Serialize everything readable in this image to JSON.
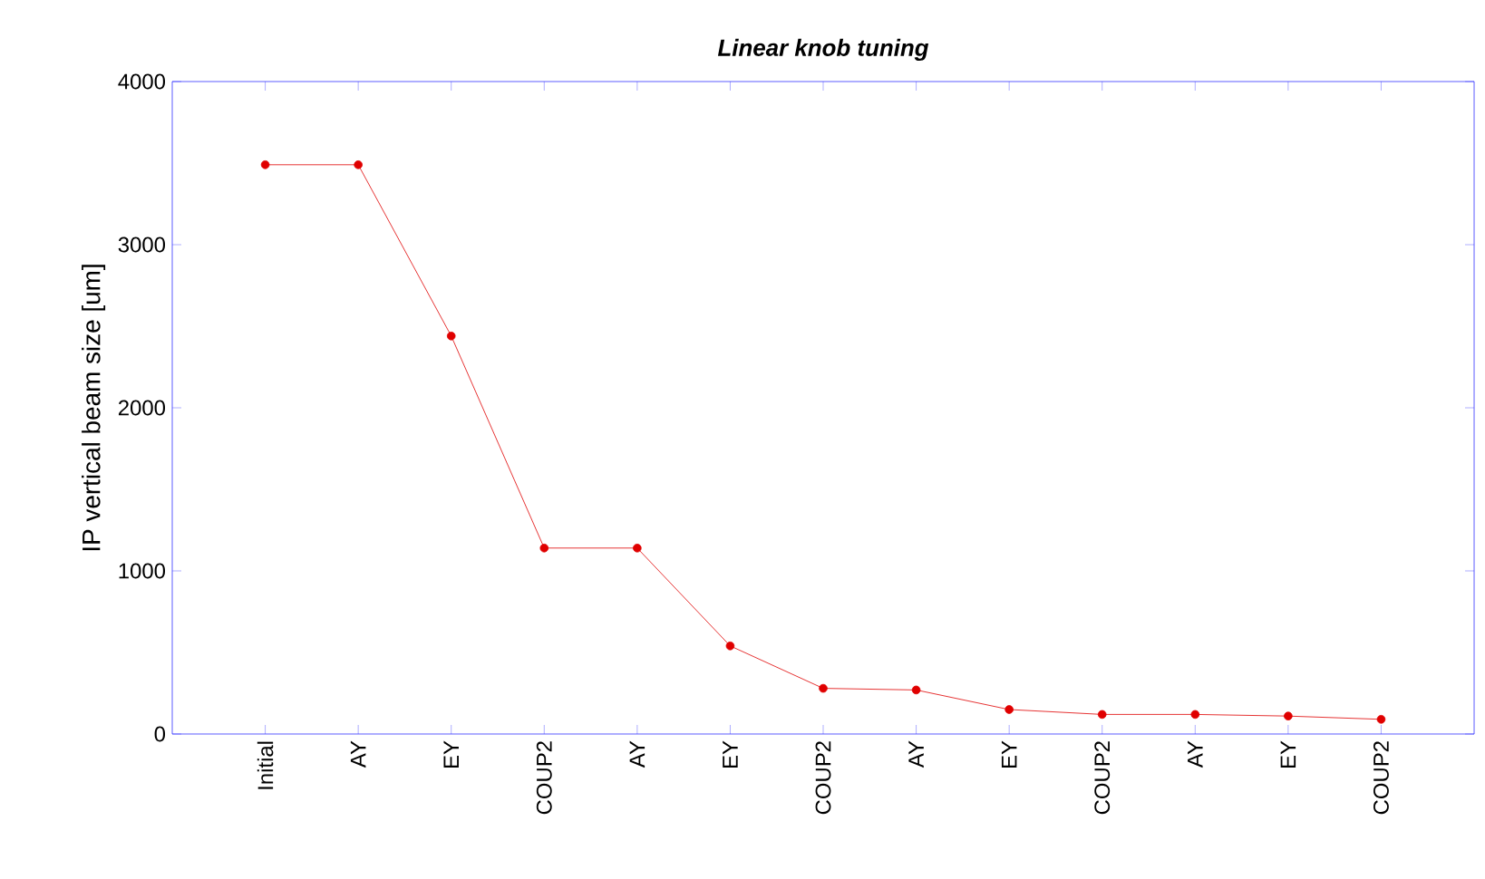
{
  "chart_data": {
    "type": "line",
    "title": "Linear knob tuning",
    "ylabel": "IP vertical beam size [um]",
    "categories": [
      "Initial",
      "AY",
      "EY",
      "COUP2",
      "AY",
      "EY",
      "COUP2",
      "AY",
      "EY",
      "COUP2",
      "AY",
      "EY",
      "COUP2"
    ],
    "series": [
      {
        "color": "#e00000",
        "values": [
          3490,
          3490,
          2440,
          1140,
          1140,
          540,
          280,
          270,
          150,
          120,
          120,
          110,
          90
        ]
      }
    ],
    "ylim": [
      0,
      4000
    ],
    "yticks": [
      0,
      1000,
      2000,
      3000,
      4000
    ],
    "marker": "circle",
    "line_style": "solid",
    "grid": false
  }
}
